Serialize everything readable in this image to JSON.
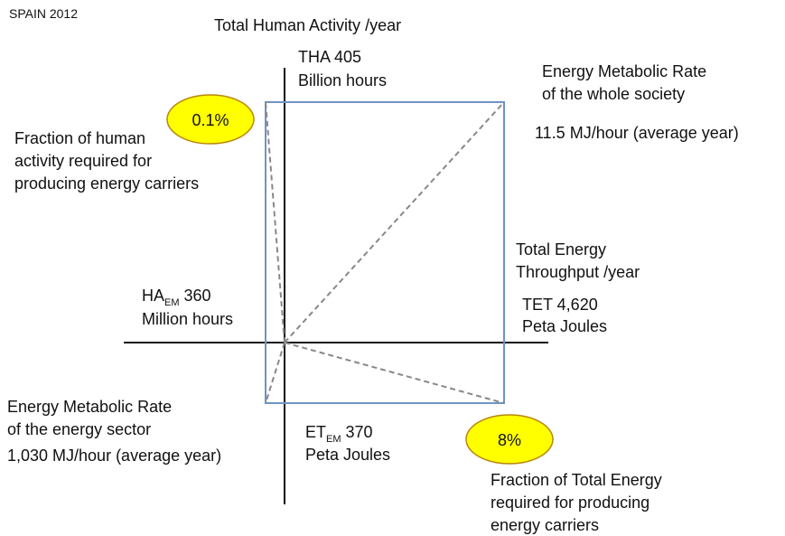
{
  "title": "SPAIN 2012",
  "vertical_axis": {
    "label": "Total Human Activity /year",
    "total": [
      "THA 405",
      "Billion hours"
    ],
    "energy_sector": {
      "prefix": "HA",
      "sub": "EM",
      "value": "360",
      "unit": "Million hours"
    }
  },
  "horizontal_axis": {
    "label": [
      "Total Energy",
      "Throughput /year"
    ],
    "total": [
      "TET 4,620",
      "Peta Joules"
    ],
    "energy_sector": {
      "prefix": "ET",
      "sub": "EM",
      "value": "370",
      "unit": "Peta Joules"
    }
  },
  "society_rate": {
    "lines": [
      "Energy Metabolic Rate",
      "of the whole society"
    ],
    "value": "11.5 MJ/hour (average year)"
  },
  "sector_rate": {
    "lines": [
      "Energy Metabolic Rate",
      "of the energy sector"
    ],
    "value": "1,030 MJ/hour (average year)"
  },
  "human_fraction": {
    "badge": "0.1%",
    "lines": [
      "Fraction of human",
      "activity required for",
      "producing energy carriers"
    ]
  },
  "energy_fraction": {
    "badge": "8%",
    "lines": [
      "Fraction of Total Energy",
      "required for producing",
      "energy carriers"
    ]
  }
}
